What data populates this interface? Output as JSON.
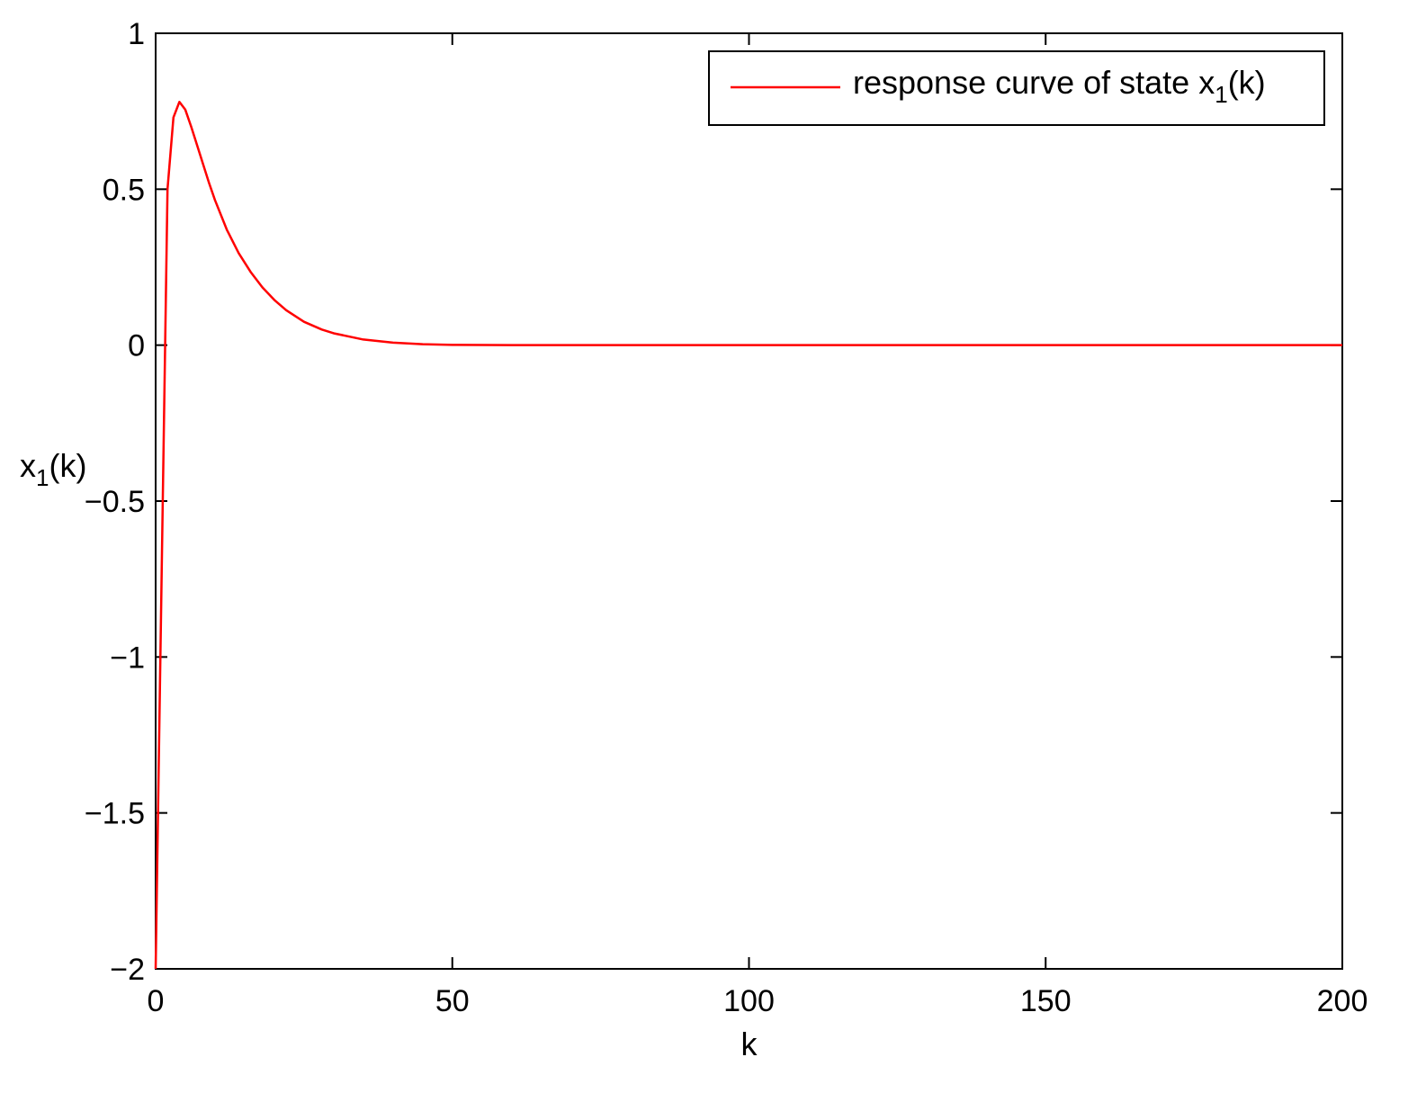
{
  "chart_data": {
    "type": "line",
    "title": "",
    "xlabel": "k",
    "ylabel": {
      "base": "x",
      "subscript": "1",
      "suffix": "(k)"
    },
    "xlim": [
      0,
      200
    ],
    "ylim": [
      -2,
      1
    ],
    "xticks": [
      0,
      50,
      100,
      150,
      200
    ],
    "xtick_labels": [
      "0",
      "50",
      "100",
      "150",
      "200"
    ],
    "yticks": [
      1,
      0.5,
      0,
      -0.5,
      -1,
      -1.5,
      -2
    ],
    "ytick_labels": [
      "1",
      "0.5",
      "0",
      "−0.5",
      "−1",
      "−1.5",
      "−2"
    ],
    "grid": false,
    "legend": {
      "placement": "top-right",
      "entries": [
        {
          "text": "response curve of state x",
          "subscript": "1",
          "suffix": "(k)"
        }
      ]
    },
    "series": [
      {
        "color": "#ff0000",
        "x": [
          0,
          1,
          2,
          3,
          4,
          5,
          6,
          7,
          8,
          9,
          10,
          12,
          14,
          16,
          18,
          20,
          22,
          25,
          28,
          30,
          35,
          40,
          45,
          50,
          60,
          80,
          100,
          120,
          150,
          180,
          200
        ],
        "y": [
          -2.0,
          -0.75,
          0.5,
          0.73,
          0.78,
          0.755,
          0.7,
          0.64,
          0.58,
          0.52,
          0.465,
          0.37,
          0.295,
          0.235,
          0.185,
          0.145,
          0.112,
          0.075,
          0.05,
          0.038,
          0.018,
          0.008,
          0.003,
          0.001,
          0.0,
          0.0,
          0.0,
          0.0,
          0.0,
          0.0,
          0.0
        ]
      }
    ]
  }
}
